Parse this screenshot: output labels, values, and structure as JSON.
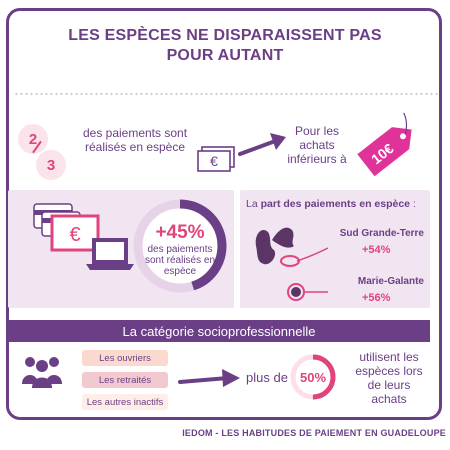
{
  "title": {
    "line1": "LES ESPÈCES NE DISPARAISSENT PAS",
    "line2": "POUR AUTANT"
  },
  "row1": {
    "numerator": "2",
    "denominator": "3",
    "text_line1": "des paiements sont",
    "text_line2": "réalisés en espèce",
    "right_line1": "Pour les",
    "right_line2": "achats",
    "right_line3": "inférieurs à",
    "tag_label": "10€"
  },
  "row2": {
    "ring_pct": "+45%",
    "ring_line1": "des paiements",
    "ring_line2": "sont réalisés en",
    "ring_line3": "espèce",
    "ring_fraction": 0.45,
    "map_title_prefix": "La ",
    "map_title_bold": "part des paiements en espèce",
    "map_title_suffix": " :",
    "regions": [
      {
        "name": "Sud Grande-Terre",
        "value": "+54%"
      },
      {
        "name": "Marie-Galante",
        "value": "+56%"
      }
    ]
  },
  "row3": {
    "bar_title": "La catégorie socioprofessionnelle",
    "categories": [
      "Les ouvriers",
      "Les retraités",
      "Les autres inactifs"
    ],
    "plus_de": "plus de",
    "pct": "50%",
    "pct_fraction": 0.5,
    "uses_line1": "utilisent les",
    "uses_line2": "espèces lors",
    "uses_line3": "de leurs",
    "uses_line4": "achats"
  },
  "footer": "IEDOM - LES HABITUDES DE PAIEMENT EN GUADELOUPE",
  "icons": [
    "money-icon",
    "price-tag-icon",
    "arrow-icon",
    "cards-icon",
    "laptop-icon",
    "map-icon",
    "people-icon"
  ],
  "colors": {
    "purple": "#6b3f86",
    "pink": "#e0447c",
    "light_purple": "#f1e5f1",
    "peach": "#fbd9cf"
  }
}
